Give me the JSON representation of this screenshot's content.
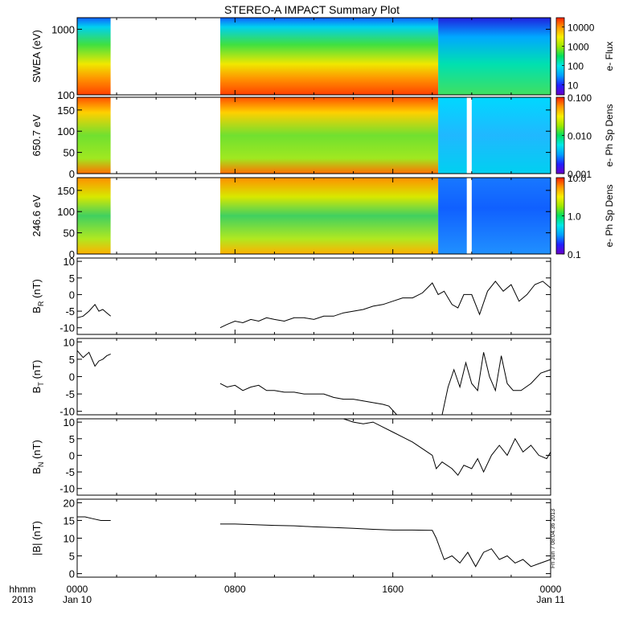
{
  "title": "STEREO-A IMPACT Summary Plot",
  "stamp": "Fri Jun  7 08:04:36 2013",
  "footer": {
    "time_label": "hhmm",
    "year_label": "2013",
    "ticks": [
      {
        "hhmm": "0000",
        "date": "Jan 10",
        "hours": 0
      },
      {
        "hhmm": "0800",
        "date": "",
        "hours": 8
      },
      {
        "hhmm": "1600",
        "date": "",
        "hours": 16
      },
      {
        "hhmm": "0000",
        "date": "Jan 11",
        "hours": 24
      }
    ]
  },
  "chart_data": [
    {
      "type": "heatmap",
      "ylabel": "SWEA (eV)",
      "ylim": [
        100,
        1500
      ],
      "y_scale": "log",
      "y_ticks": [
        {
          "v": 1000,
          "label": "1000"
        },
        {
          "v": 100,
          "label": "100"
        }
      ],
      "colorbar": {
        "label": "e- Flux",
        "scale": "log",
        "range": [
          3,
          30000
        ],
        "ticks": [
          {
            "v": 10000,
            "label": "10000"
          },
          {
            "v": 1000,
            "label": "1000"
          },
          {
            "v": 100,
            "label": "100"
          },
          {
            "v": 10,
            "label": "10"
          }
        ]
      },
      "data_gaps_hours": [
        [
          1.7,
          7.25
        ]
      ]
    },
    {
      "type": "heatmap",
      "ylabel": "650.7 eV",
      "ylim": [
        0,
        180
      ],
      "y_ticks": [
        {
          "v": 150,
          "label": "150"
        },
        {
          "v": 100,
          "label": "100"
        },
        {
          "v": 50,
          "label": "50"
        },
        {
          "v": 0,
          "label": "0"
        }
      ],
      "colorbar": {
        "label": "e- Ph Sp Dens",
        "scale": "log",
        "range": [
          0.001,
          0.1
        ],
        "ticks": [
          {
            "v": 0.1,
            "label": "0.100"
          },
          {
            "v": 0.01,
            "label": "0.010"
          },
          {
            "v": 0.001,
            "label": "0.001"
          }
        ]
      },
      "data_gaps_hours": [
        [
          1.7,
          7.25
        ],
        [
          19.75,
          20.0
        ]
      ]
    },
    {
      "type": "heatmap",
      "ylabel": "246.6 eV",
      "ylim": [
        0,
        180
      ],
      "y_ticks": [
        {
          "v": 150,
          "label": "150"
        },
        {
          "v": 100,
          "label": "100"
        },
        {
          "v": 50,
          "label": "50"
        },
        {
          "v": 0,
          "label": "0"
        }
      ],
      "colorbar": {
        "label": "e- Ph Sp Dens",
        "scale": "log",
        "range": [
          0.1,
          10
        ],
        "ticks": [
          {
            "v": 10,
            "label": "10.0"
          },
          {
            "v": 1,
            "label": "1.0"
          },
          {
            "v": 0.1,
            "label": "0.1"
          }
        ]
      },
      "data_gaps_hours": [
        [
          1.7,
          7.25
        ],
        [
          19.75,
          20.0
        ]
      ]
    },
    {
      "type": "line",
      "ylabel": "B",
      "ylabel_sub": "R",
      "ylabel_unit": "(nT)",
      "ylim": [
        -12,
        11
      ],
      "y_ticks": [
        {
          "v": 10,
          "label": "10"
        },
        {
          "v": 5,
          "label": "5"
        },
        {
          "v": 0,
          "label": "0"
        },
        {
          "v": -5,
          "label": "-5"
        },
        {
          "v": -10,
          "label": "-10"
        }
      ],
      "segments": [
        {
          "x": [
            0,
            0.3,
            0.6,
            0.9,
            1.1,
            1.3,
            1.5,
            1.7
          ],
          "y": [
            -7,
            -6.5,
            -5,
            -3,
            -5,
            -4.5,
            -5.5,
            -6.5
          ]
        },
        {
          "x": [
            7.25,
            7.6,
            8,
            8.4,
            8.8,
            9.2,
            9.6,
            10,
            10.5,
            11,
            11.5,
            12,
            12.5,
            13,
            13.5,
            14,
            14.5,
            15,
            15.5,
            16,
            16.5,
            17,
            17.5,
            18,
            18.3,
            18.6,
            19,
            19.3,
            19.6,
            20,
            20.4,
            20.8,
            21.2,
            21.6,
            22,
            22.4,
            22.8,
            23.2,
            23.6,
            24
          ],
          "y": [
            -10,
            -9,
            -8,
            -8.5,
            -7.5,
            -8,
            -7,
            -7.5,
            -8,
            -7,
            -7,
            -7.5,
            -6.5,
            -6.5,
            -5.5,
            -5,
            -4.5,
            -3.5,
            -3,
            -2,
            -1,
            -1,
            0.5,
            3.5,
            0,
            1,
            -3,
            -4,
            0,
            0,
            -6,
            1,
            4,
            1,
            3,
            -2,
            0,
            3,
            4,
            2
          ]
        }
      ]
    },
    {
      "type": "line",
      "ylabel": "B",
      "ylabel_sub": "T",
      "ylabel_unit": "(nT)",
      "ylim": [
        -11,
        11
      ],
      "y_ticks": [
        {
          "v": 10,
          "label": "10"
        },
        {
          "v": 5,
          "label": "5"
        },
        {
          "v": 0,
          "label": "0"
        },
        {
          "v": -5,
          "label": "-5"
        },
        {
          "v": -10,
          "label": "-10"
        }
      ],
      "segments": [
        {
          "x": [
            0,
            0.3,
            0.6,
            0.9,
            1.1,
            1.3,
            1.5,
            1.7
          ],
          "y": [
            7.5,
            5.5,
            7,
            3,
            4.5,
            5,
            6,
            6.5
          ]
        },
        {
          "x": [
            7.25,
            7.6,
            8,
            8.4,
            8.8,
            9.2,
            9.6,
            10,
            10.5,
            11,
            11.5,
            12,
            12.5,
            13,
            13.5,
            14,
            14.5,
            15,
            15.5,
            15.8,
            16.2
          ],
          "y": [
            -2,
            -3,
            -2.5,
            -4,
            -3,
            -2.5,
            -4,
            -4,
            -4.5,
            -4.5,
            -5,
            -5,
            -5,
            -6,
            -6.5,
            -6.5,
            -7,
            -7.5,
            -8,
            -8.5,
            -11
          ]
        },
        {
          "x": [
            18.5,
            18.8,
            19.1,
            19.4,
            19.7,
            20,
            20.3,
            20.6,
            20.9,
            21.2,
            21.5,
            21.8,
            22.1,
            22.5,
            23,
            23.5,
            24
          ],
          "y": [
            -11,
            -3,
            2,
            -3,
            4,
            -2,
            -4,
            7,
            0,
            -4,
            6,
            -2,
            -4,
            -4,
            -2,
            1,
            2
          ]
        }
      ]
    },
    {
      "type": "line",
      "ylabel": "B",
      "ylabel_sub": "N",
      "ylabel_unit": "(nT)",
      "ylim": [
        -12,
        11
      ],
      "y_ticks": [
        {
          "v": 10,
          "label": "10"
        },
        {
          "v": 5,
          "label": "5"
        },
        {
          "v": 0,
          "label": "0"
        },
        {
          "v": -5,
          "label": "-5"
        },
        {
          "v": -10,
          "label": "-10"
        }
      ],
      "segments": [
        {
          "x": [
            13.5,
            14,
            14.5,
            15,
            15.5,
            16,
            16.5,
            17,
            17.5,
            18,
            18.2,
            18.5,
            19,
            19.3,
            19.6,
            20,
            20.3,
            20.6,
            21,
            21.4,
            21.8,
            22.2,
            22.6,
            23,
            23.4,
            23.8,
            24
          ],
          "y": [
            11,
            10,
            9.5,
            10,
            8.5,
            7,
            5.5,
            4,
            2,
            0,
            -4,
            -2,
            -4,
            -6,
            -3,
            -4,
            -1,
            -5,
            0,
            3,
            0,
            5,
            1,
            3,
            0,
            -1,
            1
          ]
        }
      ]
    },
    {
      "type": "line",
      "ylabel": "|B| (nT)",
      "ylim": [
        -1,
        21
      ],
      "y_ticks": [
        {
          "v": 20,
          "label": "20"
        },
        {
          "v": 15,
          "label": "15"
        },
        {
          "v": 10,
          "label": "10"
        },
        {
          "v": 5,
          "label": "5"
        },
        {
          "v": 0,
          "label": "0"
        }
      ],
      "segments": [
        {
          "x": [
            0,
            0.4,
            0.8,
            1.2,
            1.7
          ],
          "y": [
            16,
            16,
            15.5,
            15,
            15
          ]
        },
        {
          "x": [
            7.25,
            8,
            9,
            10,
            11,
            12,
            13,
            14,
            15,
            16,
            17,
            18,
            18.2,
            18.6,
            19,
            19.4,
            19.8,
            20.2,
            20.6,
            21,
            21.4,
            21.8,
            22.2,
            22.6,
            23,
            23.5,
            24
          ],
          "y": [
            14,
            14,
            13.8,
            13.6,
            13.5,
            13.2,
            13,
            12.8,
            12.5,
            12.3,
            12.3,
            12.2,
            10,
            4,
            5,
            3,
            6,
            2,
            6,
            7,
            4,
            5,
            3,
            4,
            2,
            3,
            4
          ]
        }
      ]
    }
  ]
}
